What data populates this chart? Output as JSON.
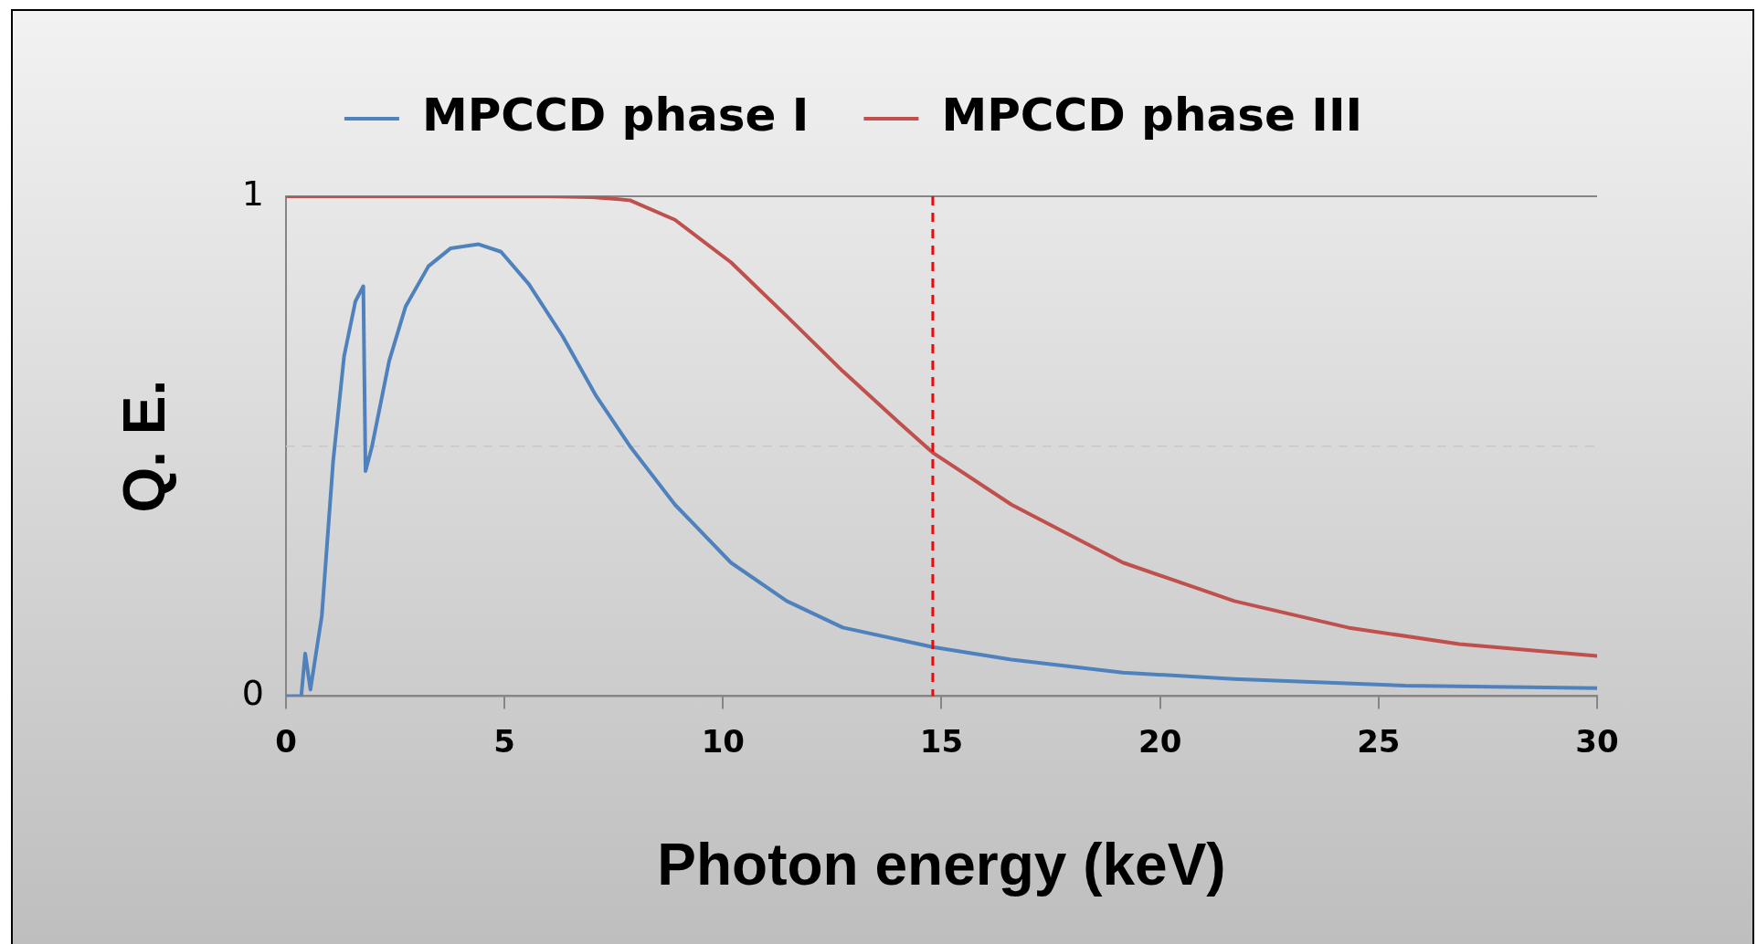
{
  "chart_data": {
    "type": "line",
    "xlabel": "Photon energy (keV)",
    "ylabel": "Q. E.",
    "xlim": [
      0,
      30
    ],
    "xticks": [
      0,
      5,
      10,
      15,
      20,
      25,
      30
    ],
    "ylim": [
      0,
      1
    ],
    "yticks": [
      0,
      {
        "value": 0.5,
        "label": null
      },
      1
    ],
    "grid": "y",
    "legend": "top",
    "marker": "none",
    "line_style": "solid",
    "series": [
      {
        "name": "MPCCD phase I",
        "color": "#4f81bd",
        "x": [
          0,
          0.35,
          0.44,
          0.56,
          0.82,
          1.08,
          1.33,
          1.59,
          1.77,
          1.82,
          1.97,
          2.36,
          2.74,
          3.26,
          3.77,
          4.41,
          4.92,
          5.56,
          6.33,
          7.1,
          7.87,
          8.9,
          10.18,
          11.46,
          12.74,
          14.8,
          16.6,
          19.15,
          21.7,
          25.6,
          30
        ],
        "values": [
          0,
          0,
          0.085,
          0.013,
          0.16,
          0.47,
          0.68,
          0.79,
          0.82,
          0.45,
          0.5,
          0.67,
          0.78,
          0.86,
          0.896,
          0.904,
          0.889,
          0.824,
          0.72,
          0.6,
          0.5,
          0.383,
          0.267,
          0.19,
          0.137,
          0.098,
          0.073,
          0.047,
          0.034,
          0.021,
          0.016
        ]
      },
      {
        "name": "MPCCD phase III",
        "color": "#c0504d",
        "x": [
          0,
          6,
          7,
          7.5,
          7.87,
          8.9,
          10.18,
          11.46,
          12.74,
          14.03,
          14.8,
          16.6,
          19.15,
          21.7,
          24.3,
          26.85,
          30
        ],
        "values": [
          1,
          1,
          0.998,
          0.995,
          0.992,
          0.953,
          0.868,
          0.76,
          0.65,
          0.547,
          0.487,
          0.383,
          0.267,
          0.19,
          0.137,
          0.104,
          0.08
        ]
      }
    ],
    "ref_lines": [
      {
        "axis": "x",
        "value": 14.8,
        "color": "#ff0000",
        "line_style": "dashed"
      }
    ]
  }
}
